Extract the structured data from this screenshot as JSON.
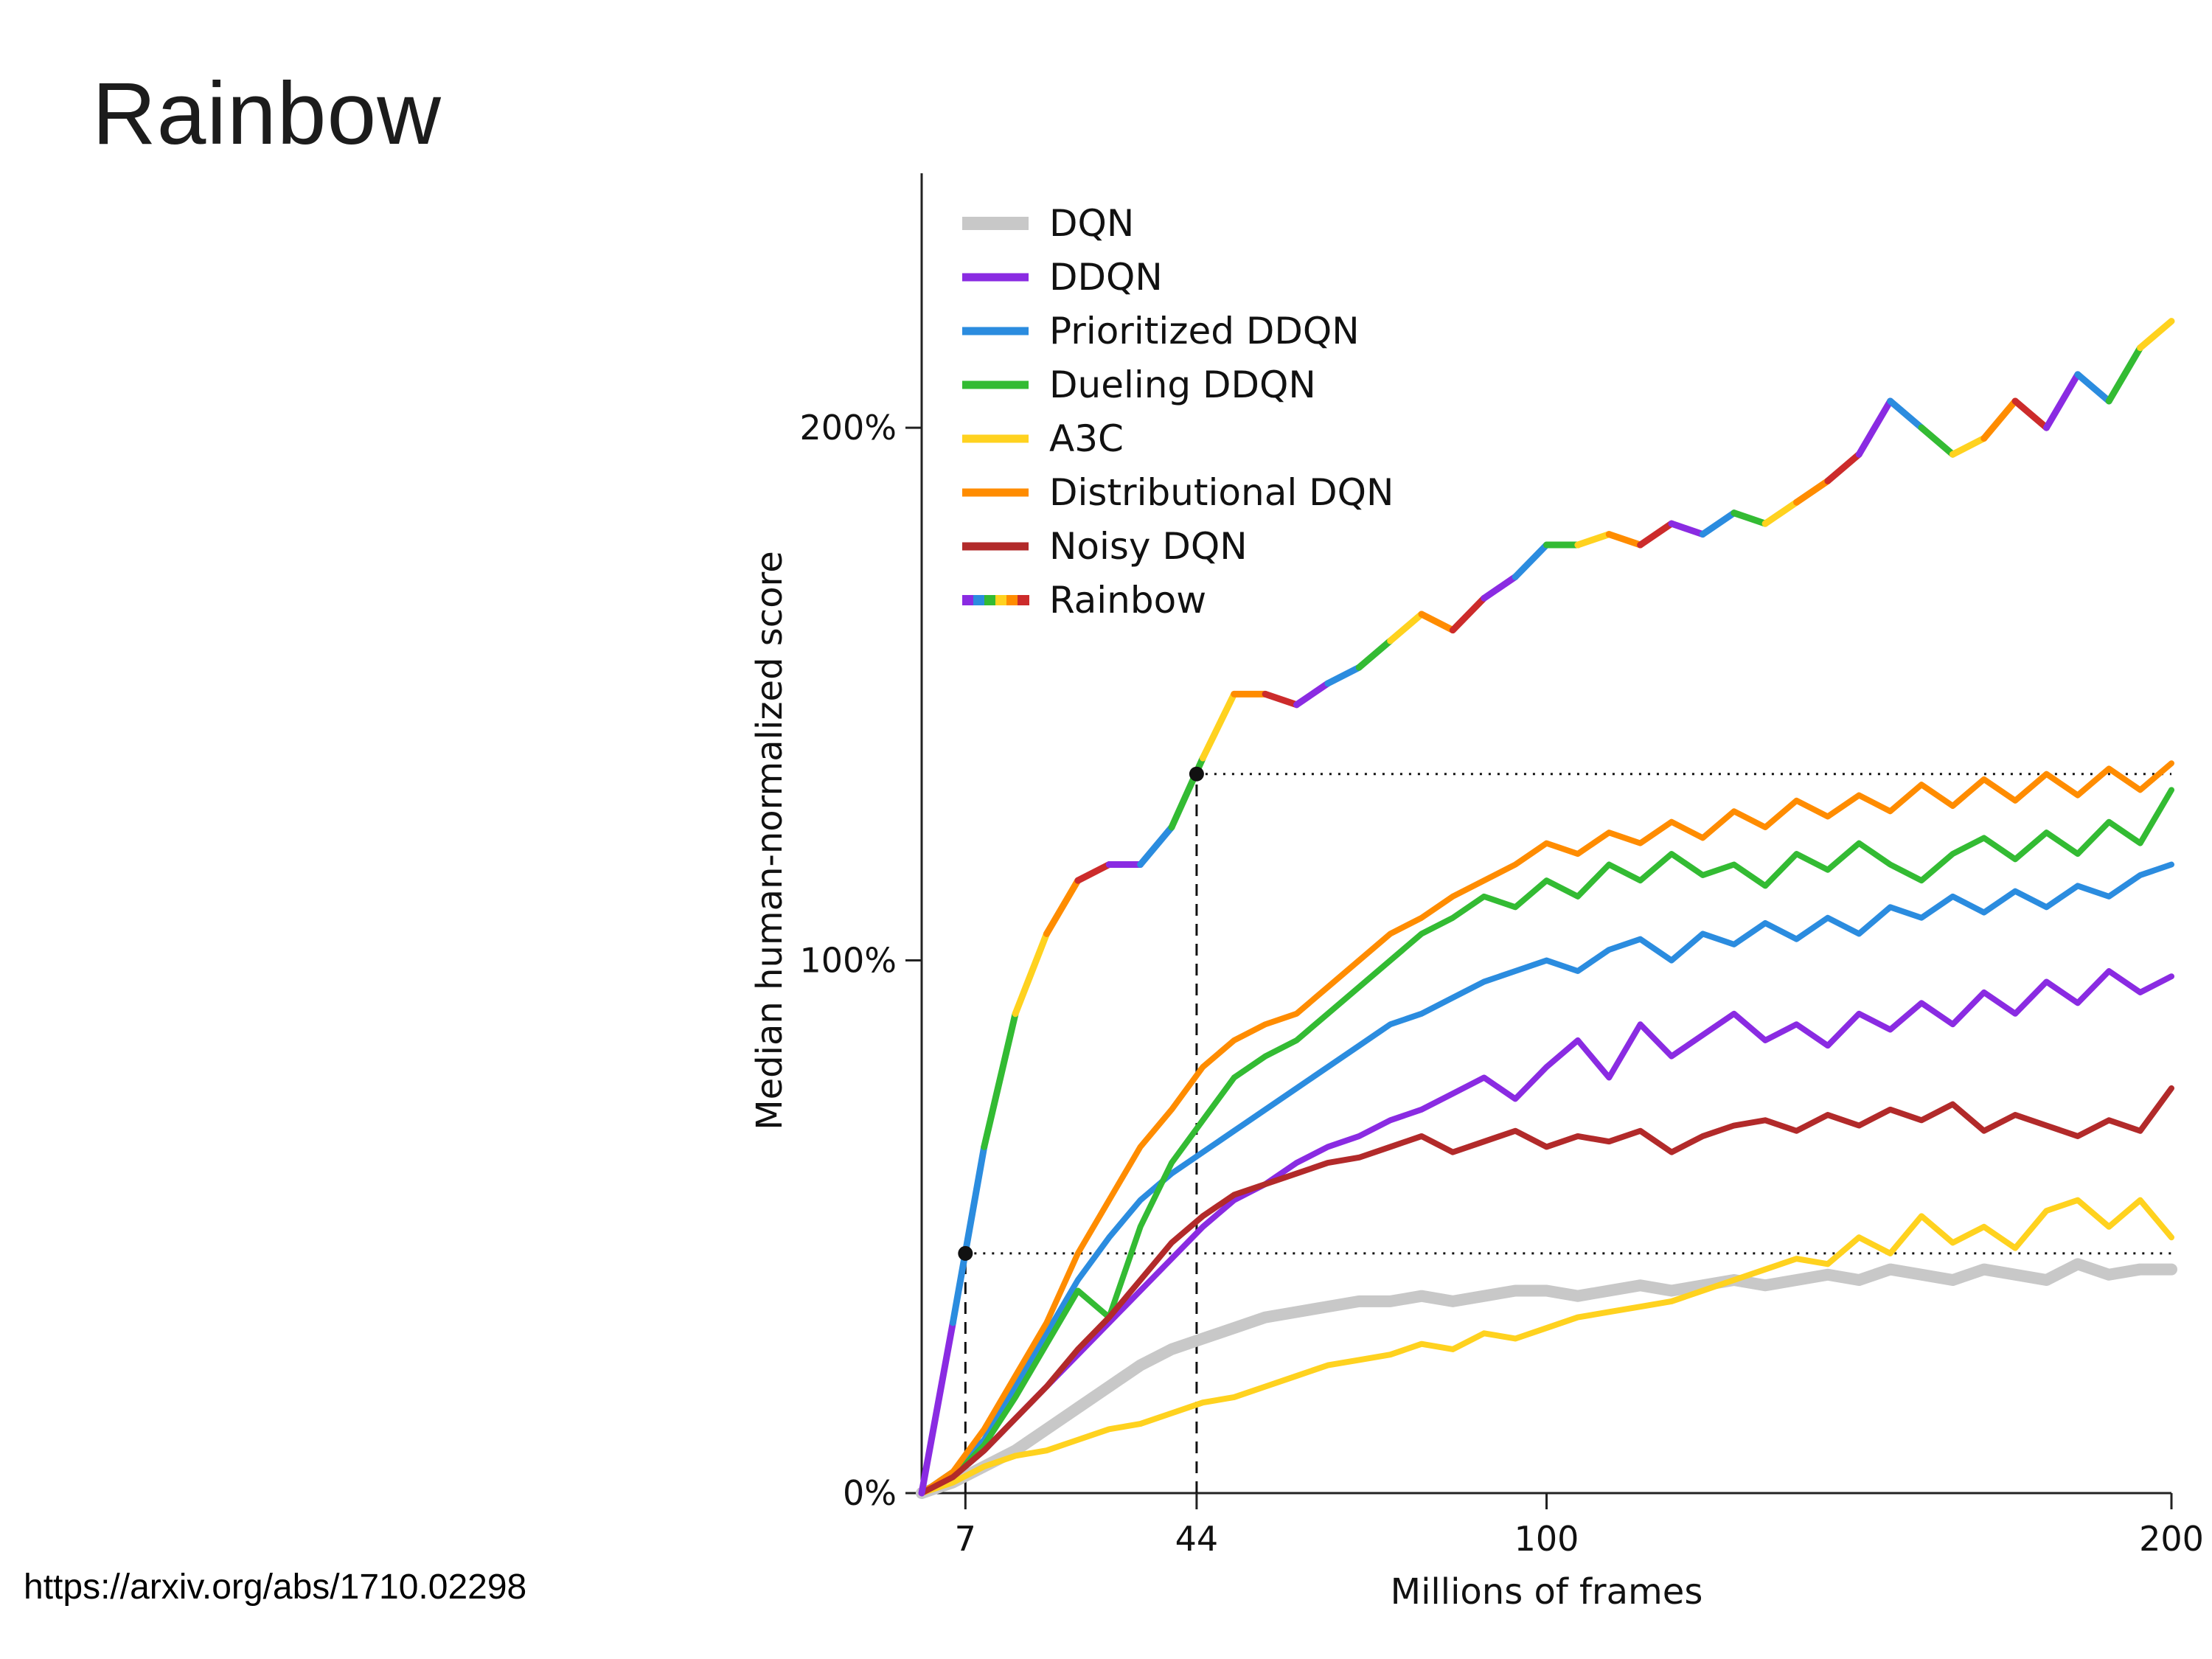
{
  "slide": {
    "title": "Rainbow",
    "link": "https://arxiv.org/abs/1710.02298"
  },
  "chart_data": {
    "type": "line",
    "title": "",
    "xlabel": "Millions of frames",
    "ylabel": "Median human-normalized score",
    "xlim": [
      0,
      200
    ],
    "ylim": [
      0,
      245
    ],
    "xticks": [
      7,
      44,
      100,
      200
    ],
    "yticks": [
      {
        "value": 0,
        "label": "0%"
      },
      {
        "value": 100,
        "label": "100%"
      },
      {
        "value": 200,
        "label": "200%"
      }
    ],
    "legend_position": "upper left",
    "grid": false,
    "axis_color": "#222222",
    "rainbow_palette": [
      "#8a2be2",
      "#2b8cdf",
      "#33bb33",
      "#ffd21f",
      "#ff8c00",
      "#cc2b2b"
    ],
    "x": [
      0,
      5,
      10,
      15,
      20,
      25,
      30,
      35,
      40,
      45,
      50,
      55,
      60,
      65,
      70,
      75,
      80,
      85,
      90,
      95,
      100,
      105,
      110,
      115,
      120,
      125,
      130,
      135,
      140,
      145,
      150,
      155,
      160,
      165,
      170,
      175,
      180,
      185,
      190,
      195,
      200
    ],
    "series": [
      {
        "name": "DQN",
        "color": "#c8c8c8",
        "width": 16,
        "values": [
          0,
          2,
          5,
          8,
          12,
          16,
          20,
          24,
          27,
          29,
          31,
          33,
          34,
          35,
          36,
          36,
          37,
          36,
          37,
          38,
          38,
          37,
          38,
          39,
          38,
          39,
          40,
          39,
          40,
          41,
          40,
          42,
          41,
          40,
          42,
          41,
          40,
          43,
          41,
          42,
          42
        ]
      },
      {
        "name": "DDQN",
        "color": "#8a2be2",
        "width": 8,
        "values": [
          0,
          3,
          8,
          14,
          20,
          26,
          32,
          38,
          44,
          50,
          55,
          58,
          62,
          65,
          67,
          70,
          72,
          75,
          78,
          74,
          80,
          85,
          78,
          88,
          82,
          86,
          90,
          85,
          88,
          84,
          90,
          87,
          92,
          88,
          94,
          90,
          96,
          92,
          98,
          94,
          97
        ]
      },
      {
        "name": "Prioritized DDQN",
        "color": "#2b8cdf",
        "width": 8,
        "values": [
          0,
          4,
          10,
          20,
          30,
          40,
          48,
          55,
          60,
          64,
          68,
          72,
          76,
          80,
          84,
          88,
          90,
          93,
          96,
          98,
          100,
          98,
          102,
          104,
          100,
          105,
          103,
          107,
          104,
          108,
          105,
          110,
          108,
          112,
          109,
          113,
          110,
          114,
          112,
          116,
          118
        ]
      },
      {
        "name": "Dueling DDQN",
        "color": "#33bb33",
        "width": 8,
        "values": [
          0,
          3,
          9,
          18,
          28,
          38,
          33,
          50,
          62,
          70,
          78,
          82,
          85,
          90,
          95,
          100,
          105,
          108,
          112,
          110,
          115,
          112,
          118,
          115,
          120,
          116,
          118,
          114,
          120,
          117,
          122,
          118,
          115,
          120,
          123,
          119,
          124,
          120,
          126,
          122,
          132
        ]
      },
      {
        "name": "A3C",
        "color": "#ffd21f",
        "width": 8,
        "values": [
          0,
          2,
          5,
          7,
          8,
          10,
          12,
          13,
          15,
          17,
          18,
          20,
          22,
          24,
          25,
          26,
          28,
          27,
          30,
          29,
          31,
          33,
          34,
          35,
          36,
          38,
          40,
          42,
          44,
          43,
          48,
          45,
          52,
          47,
          50,
          46,
          53,
          55,
          50,
          55,
          48
        ]
      },
      {
        "name": "Distributional DQN",
        "color": "#ff8c00",
        "width": 8,
        "values": [
          0,
          4,
          12,
          22,
          32,
          45,
          55,
          65,
          72,
          80,
          85,
          88,
          90,
          95,
          100,
          105,
          108,
          112,
          115,
          118,
          122,
          120,
          124,
          122,
          126,
          123,
          128,
          125,
          130,
          127,
          131,
          128,
          133,
          129,
          134,
          130,
          135,
          131,
          136,
          132,
          137
        ]
      },
      {
        "name": "Noisy DQN",
        "color": "#b22a2a",
        "width": 8,
        "values": [
          0,
          3,
          8,
          14,
          20,
          27,
          33,
          40,
          47,
          52,
          56,
          58,
          60,
          62,
          63,
          65,
          67,
          64,
          66,
          68,
          65,
          67,
          66,
          68,
          64,
          67,
          69,
          70,
          68,
          71,
          69,
          72,
          70,
          73,
          68,
          71,
          69,
          67,
          70,
          68,
          76
        ]
      },
      {
        "name": "Rainbow",
        "color": "rainbow",
        "width": 9,
        "values": [
          0,
          32,
          65,
          90,
          105,
          115,
          118,
          118,
          125,
          138,
          150,
          150,
          148,
          152,
          155,
          160,
          165,
          162,
          168,
          172,
          178,
          178,
          180,
          178,
          182,
          180,
          184,
          182,
          186,
          190,
          195,
          205,
          200,
          195,
          198,
          205,
          200,
          210,
          205,
          215,
          220
        ]
      }
    ],
    "annotations": {
      "points": [
        {
          "x": 7,
          "y": 45
        },
        {
          "x": 44,
          "y": 135
        }
      ],
      "dashed_vlines": [
        7,
        44
      ],
      "dotted_hlines": [
        45,
        135
      ]
    }
  }
}
